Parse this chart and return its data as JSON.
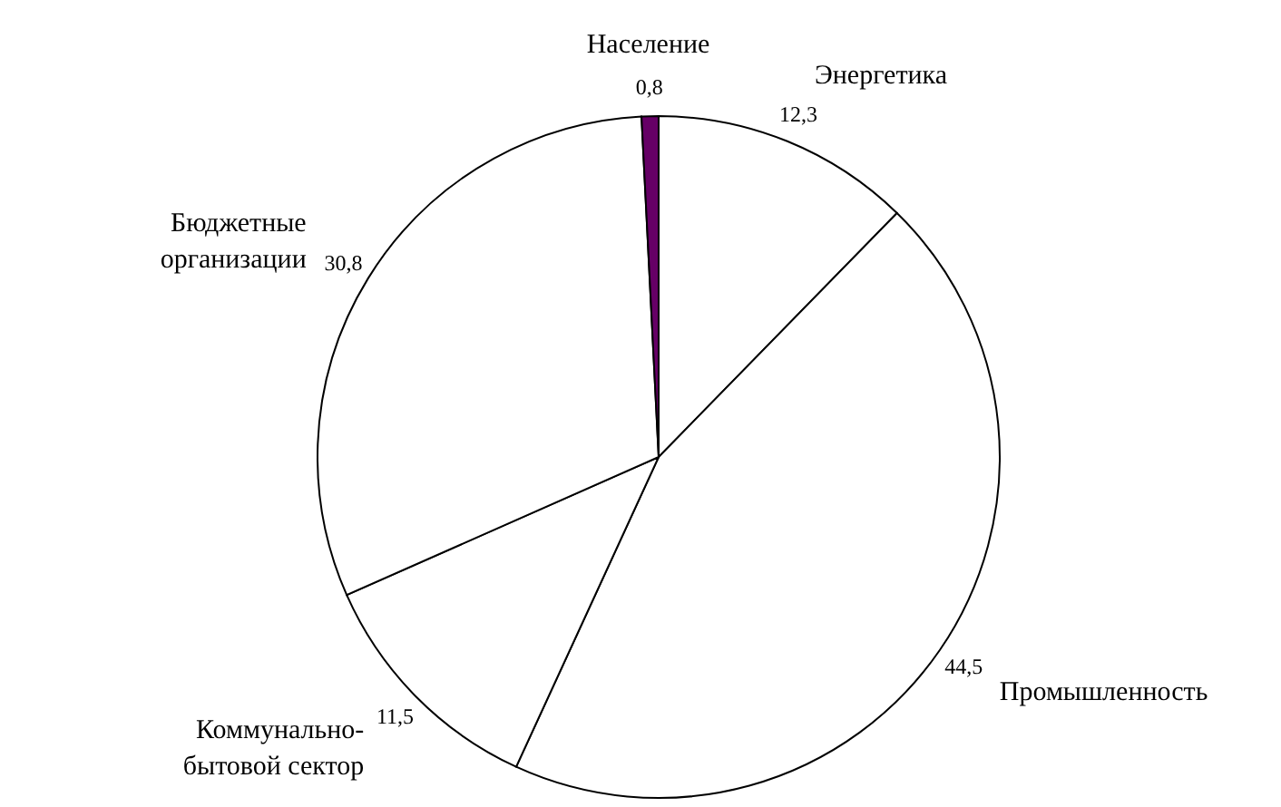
{
  "chart_data": {
    "type": "pie",
    "categories": [
      "Энергетика",
      "Промышленность",
      "Коммунально-бытовой сектор",
      "Бюджетные организации",
      "Население"
    ],
    "values": [
      12.3,
      44.5,
      11.5,
      30.8,
      0.8
    ],
    "colors": [
      "#ffffff",
      "#ffffff",
      "#ffffff",
      "#ffffff",
      "#660066"
    ],
    "value_labels": [
      "12,3",
      "44,5",
      "11,5",
      "30,8",
      "0,8"
    ],
    "legend": false
  }
}
